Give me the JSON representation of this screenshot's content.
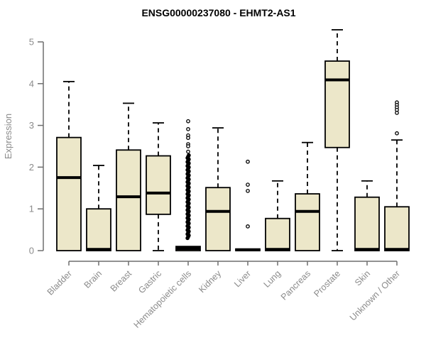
{
  "chart_data": {
    "type": "boxplot",
    "title": "ENSG00000237080 - EHMT2-AS1",
    "ylabel": "Expression",
    "ylim": [
      0,
      5.3
    ],
    "yticks": [
      "0",
      "1",
      "2",
      "3",
      "4",
      "5"
    ],
    "grid": false,
    "legend": null,
    "colors": {
      "box_fill": "#ECE7C9",
      "box_stroke": "#000000",
      "median": "#000000",
      "axis_line": "#6f6f6f",
      "axis_text": "#8b8b8b",
      "title_text": "#000000",
      "background": "#ffffff"
    },
    "categories": [
      "Bladder",
      "Brain",
      "Breast",
      "Gastric",
      "Hematopoietic cells",
      "Kidney",
      "Liver",
      "Lung",
      "Pancreas",
      "Prostate",
      "Skin",
      "Unknown / Other"
    ],
    "boxes": [
      {
        "category": "Bladder",
        "whisker_low": 0,
        "q1": 0,
        "median": 1.75,
        "q3": 2.71,
        "whisker_high": 4.05,
        "outliers": []
      },
      {
        "category": "Brain",
        "whisker_low": 0,
        "q1": 0,
        "median": 0.03,
        "q3": 1.0,
        "whisker_high": 2.04,
        "outliers": []
      },
      {
        "category": "Breast",
        "whisker_low": 0,
        "q1": 0,
        "median": 1.29,
        "q3": 2.41,
        "whisker_high": 3.53,
        "outliers": []
      },
      {
        "category": "Gastric",
        "whisker_low": 0,
        "q1": 0.87,
        "median": 1.38,
        "q3": 2.27,
        "whisker_high": 3.06,
        "outliers": []
      },
      {
        "category": "Hematopoietic cells",
        "whisker_low": 0,
        "q1": 0,
        "median": 0.05,
        "q3": 0.1,
        "whisker_high": 0.1,
        "outliers": [
          3.1,
          2.91,
          2.76,
          2.7,
          2.55,
          2.5,
          2.37
        ],
        "outlier_band": [
          0.3,
          2.3
        ]
      },
      {
        "category": "Kidney",
        "whisker_low": 0,
        "q1": 0,
        "median": 0.94,
        "q3": 1.51,
        "whisker_high": 2.94,
        "outliers": []
      },
      {
        "category": "Liver",
        "whisker_low": 0,
        "q1": 0,
        "median": 0.02,
        "q3": 0.04,
        "whisker_high": 0.04,
        "outliers": [
          2.13,
          1.58,
          1.43,
          0.58
        ]
      },
      {
        "category": "Lung",
        "whisker_low": 0,
        "q1": 0,
        "median": 0.03,
        "q3": 0.77,
        "whisker_high": 1.67,
        "outliers": []
      },
      {
        "category": "Pancreas",
        "whisker_low": 0,
        "q1": 0,
        "median": 0.94,
        "q3": 1.36,
        "whisker_high": 2.59,
        "outliers": []
      },
      {
        "category": "Prostate",
        "whisker_low": 0,
        "q1": 2.47,
        "median": 4.09,
        "q3": 4.54,
        "whisker_high": 5.29,
        "outliers": []
      },
      {
        "category": "Skin",
        "whisker_low": 0,
        "q1": 0,
        "median": 0.03,
        "q3": 1.28,
        "whisker_high": 1.67,
        "outliers": []
      },
      {
        "category": "Unknown / Other",
        "whisker_low": 0,
        "q1": 0,
        "median": 0.03,
        "q3": 1.05,
        "whisker_high": 2.65,
        "outliers": [
          3.55,
          3.49,
          3.43,
          3.37,
          3.3,
          2.81
        ]
      }
    ]
  }
}
